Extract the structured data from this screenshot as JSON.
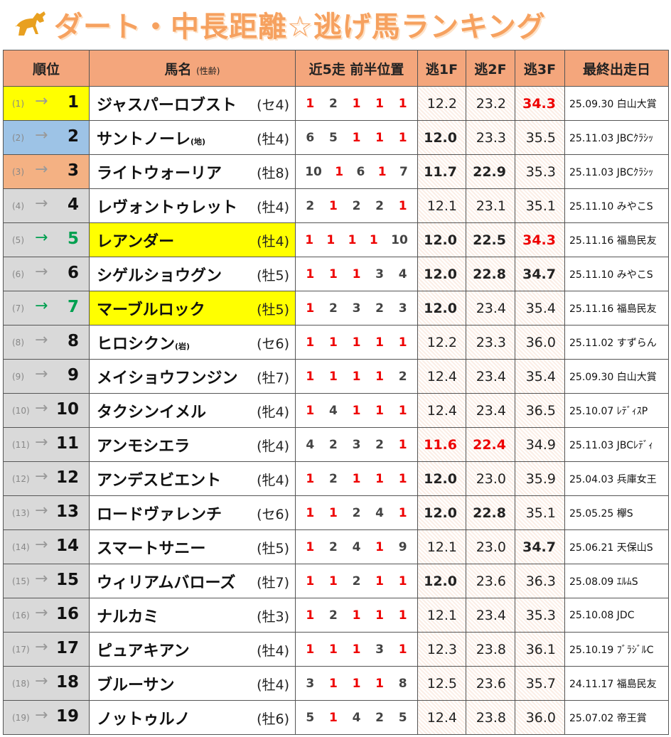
{
  "header": {
    "title": "ダート・中長距離☆逃げ馬ランキング"
  },
  "table": {
    "columns": {
      "rank": "順位",
      "name": "馬名",
      "sexage": "(性齢)",
      "positions": "近5走 前半位置",
      "f1": "逃1F",
      "f2": "逃2F",
      "f3": "逃3F",
      "last": "最終出走日"
    },
    "rows": [
      {
        "prev": "(1)",
        "arrow": "→",
        "arrow_color": "#999",
        "rank": 1,
        "rank_bg": "#ffff00",
        "name": "ジャスパーロブスト",
        "sexage": "(セ4)",
        "positions": [
          1,
          2,
          1,
          1,
          1
        ],
        "f1": "12.2",
        "f2": "23.2",
        "f3": "34.3",
        "last": "25.09.30 白山大賞"
      },
      {
        "prev": "(2)",
        "arrow": "→",
        "arrow_color": "#999",
        "rank": 2,
        "rank_bg": "#9dc3e6",
        "name": "サントノーレ",
        "name_note": "(地)",
        "sexage": "(牡4)",
        "positions": [
          6,
          5,
          1,
          1,
          1
        ],
        "f1": "12.0",
        "f2": "23.3",
        "f3": "35.5",
        "last": "25.11.03 JBCｸﾗｼｯ"
      },
      {
        "prev": "(3)",
        "arrow": "→",
        "arrow_color": "#999",
        "rank": 3,
        "rank_bg": "#f4b183",
        "name": "ライトウォーリア",
        "sexage": "(牡8)",
        "positions": [
          10,
          1,
          6,
          1,
          7
        ],
        "f1": "11.7",
        "f2": "22.9",
        "f3": "35.3",
        "last": "25.11.03 JBCｸﾗｼｯ"
      },
      {
        "prev": "(4)",
        "arrow": "→",
        "arrow_color": "#999",
        "rank": 4,
        "name": "レヴォントゥレット",
        "sexage": "(牡4)",
        "positions": [
          2,
          1,
          2,
          2,
          1
        ],
        "f1": "12.1",
        "f2": "23.1",
        "f3": "35.1",
        "last": "25.11.10 みやこS"
      },
      {
        "prev": "(5)",
        "arrow": "→",
        "arrow_color": "#00a050",
        "rank": 5,
        "name": "レアンダー",
        "name_bg": "#ffff00",
        "sexage": "(牡4)",
        "positions": [
          1,
          1,
          1,
          1,
          10
        ],
        "f1": "12.0",
        "f2": "22.5",
        "f3": "34.3",
        "last": "25.11.16 福島民友"
      },
      {
        "prev": "(6)",
        "arrow": "→",
        "arrow_color": "#999",
        "rank": 6,
        "name": "シゲルショウグン",
        "sexage": "(牡5)",
        "positions": [
          1,
          1,
          1,
          3,
          4
        ],
        "f1": "12.0",
        "f2": "22.8",
        "f3": "34.7",
        "last": "25.11.10 みやこS"
      },
      {
        "prev": "(7)",
        "arrow": "→",
        "arrow_color": "#00a050",
        "rank": 7,
        "name": "マーブルロック",
        "name_bg": "#ffff00",
        "sexage": "(牡5)",
        "positions": [
          1,
          2,
          3,
          2,
          3
        ],
        "f1": "12.0",
        "f2": "23.4",
        "f3": "35.4",
        "last": "25.11.16 福島民友"
      },
      {
        "prev": "(8)",
        "arrow": "→",
        "arrow_color": "#999",
        "rank": 8,
        "name": "ヒロシクン",
        "name_note": "(岩)",
        "sexage": "(セ6)",
        "positions": [
          1,
          1,
          1,
          1,
          1
        ],
        "f1": "12.2",
        "f2": "23.3",
        "f3": "36.0",
        "last": "25.11.02 すずらん"
      },
      {
        "prev": "(9)",
        "arrow": "→",
        "arrow_color": "#999",
        "rank": 9,
        "name": "メイショウフンジン",
        "sexage": "(牡7)",
        "positions": [
          1,
          1,
          1,
          1,
          2
        ],
        "f1": "12.4",
        "f2": "23.4",
        "f3": "35.4",
        "last": "25.09.30 白山大賞"
      },
      {
        "prev": "(10)",
        "arrow": "→",
        "arrow_color": "#999",
        "rank": 10,
        "name": "タクシンイメル",
        "sexage": "(牝4)",
        "positions": [
          1,
          4,
          1,
          1,
          1
        ],
        "f1": "12.4",
        "f2": "23.4",
        "f3": "36.5",
        "last": "25.10.07 ﾚﾃﾞｨｽP"
      },
      {
        "prev": "(11)",
        "arrow": "→",
        "arrow_color": "#999",
        "rank": 11,
        "name": "アンモシエラ",
        "sexage": "(牝4)",
        "positions": [
          4,
          2,
          3,
          2,
          1
        ],
        "f1": "11.6",
        "f2": "22.4",
        "f3": "34.9",
        "last": "25.11.03 JBCﾚﾃﾞｨ"
      },
      {
        "prev": "(12)",
        "arrow": "→",
        "arrow_color": "#999",
        "rank": 12,
        "name": "アンデスビエント",
        "sexage": "(牝4)",
        "positions": [
          1,
          2,
          1,
          1,
          1
        ],
        "f1": "12.0",
        "f2": "23.0",
        "f3": "35.9",
        "last": "25.04.03 兵庫女王"
      },
      {
        "prev": "(13)",
        "arrow": "→",
        "arrow_color": "#999",
        "rank": 13,
        "name": "ロードヴァレンチ",
        "sexage": "(セ6)",
        "positions": [
          1,
          1,
          2,
          4,
          1
        ],
        "f1": "12.0",
        "f2": "22.8",
        "f3": "35.1",
        "last": "25.05.25 欅S"
      },
      {
        "prev": "(14)",
        "arrow": "→",
        "arrow_color": "#999",
        "rank": 14,
        "name": "スマートサニー",
        "sexage": "(牡5)",
        "positions": [
          1,
          2,
          4,
          1,
          9
        ],
        "f1": "12.1",
        "f2": "23.0",
        "f3": "34.7",
        "last": "25.06.21 天保山S"
      },
      {
        "prev": "(15)",
        "arrow": "→",
        "arrow_color": "#999",
        "rank": 15,
        "name": "ウィリアムバローズ",
        "sexage": "(牡7)",
        "positions": [
          1,
          1,
          2,
          1,
          1
        ],
        "f1": "12.0",
        "f2": "23.6",
        "f3": "36.3",
        "last": "25.08.09 ｴﾙﾑS"
      },
      {
        "prev": "(16)",
        "arrow": "→",
        "arrow_color": "#999",
        "rank": 16,
        "name": "ナルカミ",
        "sexage": "(牡3)",
        "positions": [
          1,
          2,
          1,
          1,
          1
        ],
        "f1": "12.1",
        "f2": "23.4",
        "f3": "35.3",
        "last": "25.10.08 JDC"
      },
      {
        "prev": "(17)",
        "arrow": "→",
        "arrow_color": "#999",
        "rank": 17,
        "name": "ピュアキアン",
        "sexage": "(牡4)",
        "positions": [
          1,
          1,
          1,
          3,
          1
        ],
        "f1": "12.3",
        "f2": "23.8",
        "f3": "36.1",
        "last": "25.10.19 ﾌﾞﾗｼﾞﾙC"
      },
      {
        "prev": "(18)",
        "arrow": "→",
        "arrow_color": "#999",
        "rank": 18,
        "name": "ブルーサン",
        "sexage": "(牡4)",
        "positions": [
          3,
          1,
          1,
          1,
          8
        ],
        "f1": "12.5",
        "f2": "23.6",
        "f3": "35.7",
        "last": "24.11.17 福島民友"
      },
      {
        "prev": "(19)",
        "arrow": "→",
        "arrow_color": "#999",
        "rank": 19,
        "name": "ノットゥルノ",
        "sexage": "(牡6)",
        "positions": [
          5,
          1,
          4,
          2,
          5
        ],
        "f1": "12.4",
        "f2": "23.8",
        "f3": "36.0",
        "last": "25.07.02 帝王賞"
      }
    ]
  }
}
